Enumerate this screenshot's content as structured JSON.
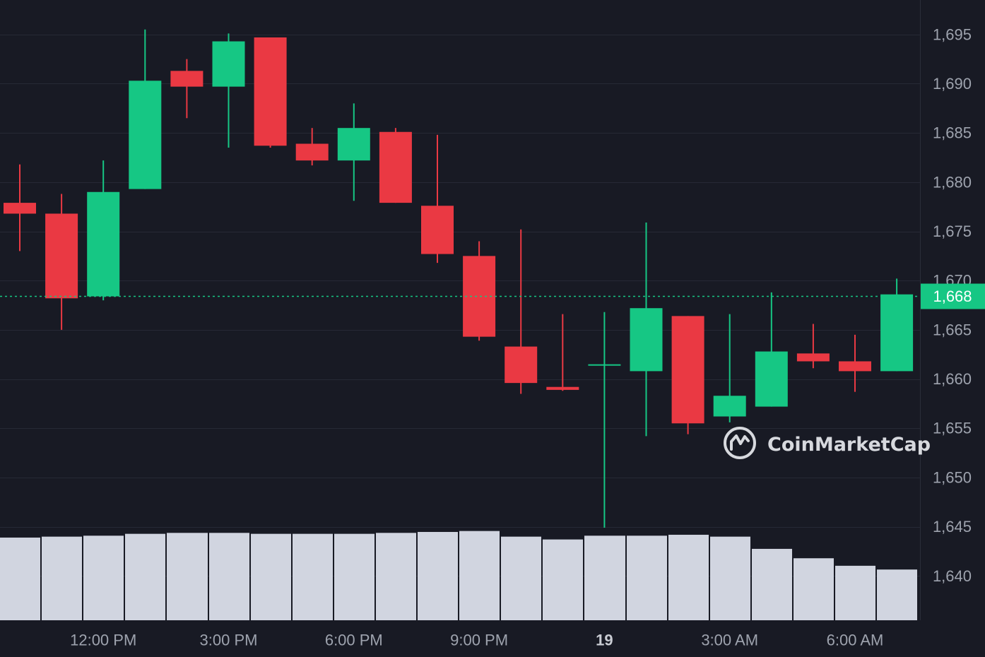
{
  "chart_data": {
    "type": "candlestick",
    "title": "",
    "xlabel": "",
    "ylabel": "",
    "ylim": [
      1635.5,
      1698.5
    ],
    "y_ticks": [
      "1,695",
      "1,690",
      "1,685",
      "1,680",
      "1,675",
      "1,670",
      "1,665",
      "1,660",
      "1,655",
      "1,650",
      "1,645",
      "1,640"
    ],
    "y_tick_values": [
      1695,
      1690,
      1685,
      1680,
      1675,
      1670,
      1665,
      1660,
      1655,
      1650,
      1645,
      1640
    ],
    "x_ticks": [
      {
        "label": "12:00 PM",
        "index": 2,
        "bold": false
      },
      {
        "label": "3:00 PM",
        "index": 5,
        "bold": false
      },
      {
        "label": "6:00 PM",
        "index": 8,
        "bold": false
      },
      {
        "label": "9:00 PM",
        "index": 11,
        "bold": false
      },
      {
        "label": "19",
        "index": 14,
        "bold": true
      },
      {
        "label": "3:00 AM",
        "index": 17,
        "bold": false
      },
      {
        "label": "6:00 AM",
        "index": 20,
        "bold": false
      }
    ],
    "candles": [
      {
        "open": 1677.9,
        "high": 1681.8,
        "low": 1673.0,
        "close": 1676.8
      },
      {
        "open": 1676.8,
        "high": 1678.8,
        "low": 1665.0,
        "close": 1668.2
      },
      {
        "open": 1668.4,
        "high": 1682.2,
        "low": 1668.0,
        "close": 1679.0
      },
      {
        "open": 1679.3,
        "high": 1695.5,
        "low": 1679.3,
        "close": 1690.3
      },
      {
        "open": 1691.3,
        "high": 1692.5,
        "low": 1686.5,
        "close": 1689.7
      },
      {
        "open": 1689.7,
        "high": 1695.1,
        "low": 1683.5,
        "close": 1694.3
      },
      {
        "open": 1694.7,
        "high": 1694.7,
        "low": 1683.5,
        "close": 1683.7
      },
      {
        "open": 1683.9,
        "high": 1685.5,
        "low": 1681.7,
        "close": 1682.2
      },
      {
        "open": 1682.2,
        "high": 1688.0,
        "low": 1678.1,
        "close": 1685.5
      },
      {
        "open": 1685.1,
        "high": 1685.5,
        "low": 1677.9,
        "close": 1677.9
      },
      {
        "open": 1677.6,
        "high": 1684.8,
        "low": 1671.8,
        "close": 1672.7
      },
      {
        "open": 1672.5,
        "high": 1674.0,
        "low": 1663.9,
        "close": 1664.3
      },
      {
        "open": 1663.3,
        "high": 1675.2,
        "low": 1658.5,
        "close": 1659.6
      },
      {
        "open": 1659.2,
        "high": 1666.6,
        "low": 1658.8,
        "close": 1658.9
      },
      {
        "open": 1661.5,
        "high": 1666.8,
        "low": 1644.9,
        "close": 1661.5
      },
      {
        "open": 1660.8,
        "high": 1675.9,
        "low": 1654.2,
        "close": 1667.2
      },
      {
        "open": 1666.4,
        "high": 1666.4,
        "low": 1654.4,
        "close": 1655.5
      },
      {
        "open": 1656.2,
        "high": 1666.6,
        "low": 1655.6,
        "close": 1658.3
      },
      {
        "open": 1657.2,
        "high": 1668.8,
        "low": 1657.2,
        "close": 1662.8
      },
      {
        "open": 1662.6,
        "high": 1665.6,
        "low": 1661.1,
        "close": 1661.8
      },
      {
        "open": 1661.8,
        "high": 1664.5,
        "low": 1658.7,
        "close": 1660.8
      },
      {
        "open": 1660.8,
        "high": 1670.2,
        "low": 1660.8,
        "close": 1668.6
      }
    ],
    "volume_relative": [
      0.88,
      0.89,
      0.9,
      0.92,
      0.93,
      0.93,
      0.92,
      0.92,
      0.92,
      0.93,
      0.94,
      0.95,
      0.89,
      0.86,
      0.9,
      0.9,
      0.91,
      0.89,
      0.76,
      0.66,
      0.58,
      0.54
    ],
    "current_price": {
      "label": "1,668",
      "value": 1668.4
    },
    "colors": {
      "background": "#181a24",
      "grid": "#262935",
      "up": "#16c784",
      "down": "#ea3943",
      "volume": "#d1d5e0",
      "axis_text": "#9ea3ae"
    }
  },
  "watermark": {
    "text": "CoinMarketCap",
    "icon": "coinmarketcap-logo-icon"
  }
}
